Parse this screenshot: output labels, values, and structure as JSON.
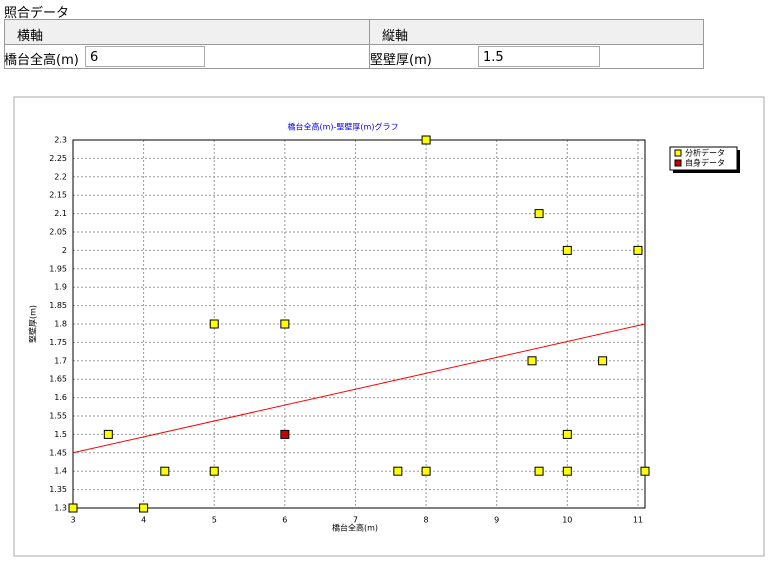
{
  "header": {
    "title": "照合データ"
  },
  "table": {
    "headers": [
      "横軸",
      "縦軸"
    ],
    "fields": [
      {
        "label": "橋台全高(m)",
        "value": "6"
      },
      {
        "label": "堅壁厚(m)",
        "value": "1.5"
      }
    ]
  },
  "chart_data": {
    "type": "scatter",
    "title": "橋台全高(m)-堅壁厚(m)グラフ",
    "x_label": "橋台全高(m)",
    "y_label": "堅壁厚(m)",
    "xlim": [
      3,
      11.1
    ],
    "ylim": [
      1.3,
      2.3
    ],
    "xticks": [
      3,
      4,
      5,
      6,
      7,
      8,
      9,
      10,
      11
    ],
    "yticks": [
      1.3,
      1.35,
      1.4,
      1.45,
      1.5,
      1.55,
      1.6,
      1.65,
      1.7,
      1.75,
      1.8,
      1.85,
      1.9,
      1.95,
      2,
      2.05,
      2.1,
      2.15,
      2.2,
      2.25,
      2.3
    ],
    "grid": true,
    "legend": "upper right",
    "series": [
      {
        "name": "分析データ",
        "color": "#ffff00",
        "x": [
          3,
          3.5,
          4,
          4.3,
          5,
          5,
          6,
          7.6,
          8,
          8,
          9.5,
          9.6,
          9.6,
          10,
          10,
          10,
          10.5,
          11,
          11.1
        ],
        "values": [
          1.3,
          1.5,
          1.3,
          1.4,
          1.8,
          1.4,
          1.8,
          1.4,
          2.3,
          1.4,
          1.7,
          2.1,
          1.4,
          2,
          1.5,
          1.4,
          1.7,
          2,
          1.4
        ]
      },
      {
        "name": "自身データ",
        "color": "#cc0000",
        "x": [
          6
        ],
        "values": [
          1.5
        ]
      }
    ],
    "trendline": {
      "color": "#ff0000",
      "x": [
        3,
        11.1
      ],
      "values": [
        1.45,
        1.8
      ]
    }
  }
}
